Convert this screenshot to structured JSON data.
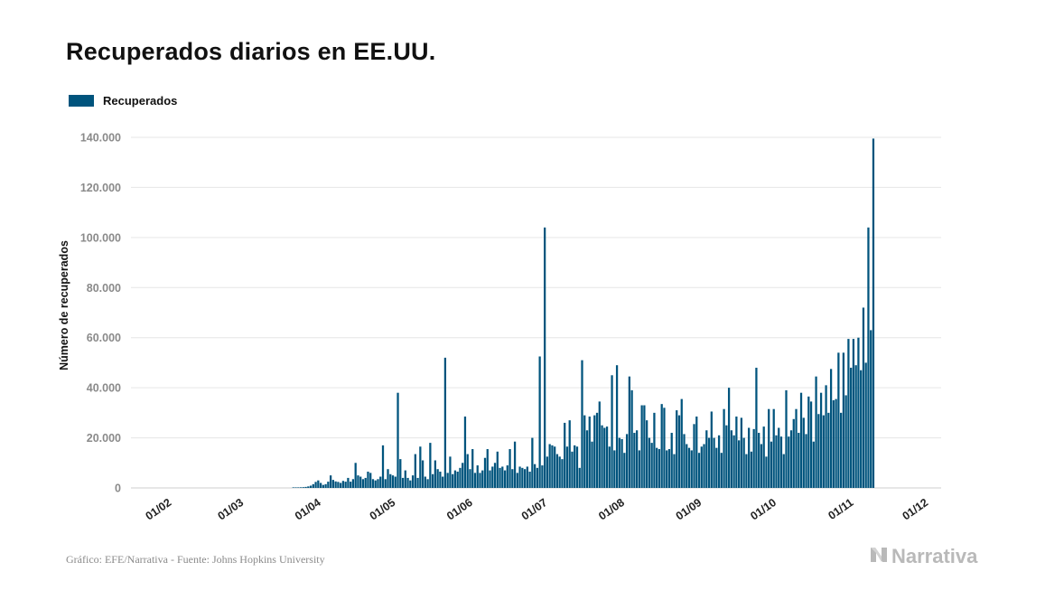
{
  "title": "Recuperados diarios en EE.UU.",
  "legend": {
    "label": "Recuperados"
  },
  "footer": {
    "source": "Gráfico: EFE/Narrativa - Fuente: Johns Hopkins University"
  },
  "brand": {
    "name": "Narrativa",
    "icon": "narrativa-logo-icon"
  },
  "colors": {
    "bar": "#00547d",
    "grid": "#e6e6e6",
    "axis_text": "#8a8a8a"
  },
  "chart_data": {
    "type": "bar",
    "ylabel": "Número de recuperados",
    "ylim": [
      0,
      140000
    ],
    "yticks": [
      0,
      20000,
      40000,
      60000,
      80000,
      100000,
      120000,
      140000
    ],
    "ytick_labels": [
      "0",
      "20.000",
      "40.000",
      "60.000",
      "80.000",
      "100.000",
      "120.000",
      "140.000"
    ],
    "xtick_labels": [
      "01/02",
      "01/03",
      "01/04",
      "01/05",
      "01/06",
      "01/07",
      "01/08",
      "01/09",
      "01/10",
      "01/11",
      "01/12"
    ],
    "grid": true,
    "legend_position": "top-left",
    "start_date": "2020-01-22",
    "end_date": "2020-11-30",
    "series": [
      {
        "name": "Recuperados",
        "values": [
          0,
          0,
          0,
          0,
          0,
          0,
          0,
          0,
          0,
          0,
          0,
          0,
          0,
          0,
          0,
          0,
          0,
          0,
          0,
          0,
          0,
          0,
          0,
          0,
          0,
          0,
          0,
          0,
          0,
          0,
          0,
          0,
          0,
          0,
          0,
          0,
          0,
          0,
          0,
          0,
          0,
          0,
          0,
          0,
          0,
          0,
          0,
          0,
          0,
          0,
          0,
          0,
          0,
          0,
          0,
          0,
          0,
          0,
          0,
          0,
          0,
          0,
          0,
          0,
          100,
          150,
          200,
          250,
          300,
          400,
          600,
          900,
          1500,
          2400,
          3000,
          2000,
          1200,
          1500,
          2500,
          5000,
          3200,
          2600,
          2400,
          2000,
          2800,
          2500,
          4000,
          2500,
          3500,
          10000,
          5000,
          4500,
          3500,
          4000,
          6500,
          6000,
          3500,
          3000,
          3500,
          4500,
          17000,
          3500,
          7500,
          5500,
          5000,
          4500,
          38000,
          11500,
          4000,
          7000,
          4000,
          3000,
          5000,
          13500,
          4000,
          16500,
          11000,
          4500,
          3500,
          18000,
          5500,
          11000,
          7500,
          6500,
          4500,
          52000,
          6000,
          12500,
          5500,
          7000,
          6500,
          8000,
          10000,
          28500,
          13500,
          7500,
          15500,
          6000,
          9000,
          6000,
          7000,
          12000,
          15500,
          7000,
          8500,
          10000,
          14500,
          8000,
          8500,
          7000,
          9000,
          15500,
          7500,
          18500,
          6000,
          8500,
          8000,
          7500,
          8500,
          6500,
          20000,
          9500,
          8000,
          52500,
          9000,
          104000,
          12500,
          17500,
          17000,
          16500,
          13500,
          12500,
          11500,
          26000,
          16500,
          27000,
          14500,
          17000,
          16500,
          8000,
          51000,
          29000,
          23000,
          28500,
          18500,
          29000,
          30000,
          34500,
          25000,
          24000,
          24500,
          16500,
          45000,
          15000,
          49000,
          20000,
          19500,
          14000,
          21500,
          44500,
          39000,
          22000,
          23000,
          15000,
          33000,
          33000,
          27000,
          20000,
          18000,
          30000,
          16000,
          15500,
          33500,
          32000,
          15000,
          15500,
          22000,
          13500,
          31000,
          29000,
          35500,
          21500,
          17500,
          16000,
          15000,
          25500,
          28500,
          14000,
          16500,
          17500,
          23000,
          20000,
          30500,
          20000,
          16000,
          21000,
          14000,
          31500,
          25000,
          40000,
          23000,
          21000,
          28500,
          19000,
          28000,
          20000,
          13500,
          24000,
          14500,
          23500,
          48000,
          22000,
          17500,
          24500,
          12500,
          31500,
          18500,
          31500,
          21000,
          24000,
          20500,
          13500,
          39000,
          20500,
          23000,
          27500,
          31500,
          22000,
          38000,
          28000,
          21500,
          36500,
          34500,
          18500,
          44500,
          29500,
          38000,
          29000,
          41000,
          30000,
          47500,
          35000,
          35500,
          54000,
          30000,
          54000,
          37000,
          59500,
          48000,
          59500,
          49000,
          60000,
          47000,
          72000,
          50000,
          104000,
          63000,
          139500
        ]
      }
    ]
  }
}
